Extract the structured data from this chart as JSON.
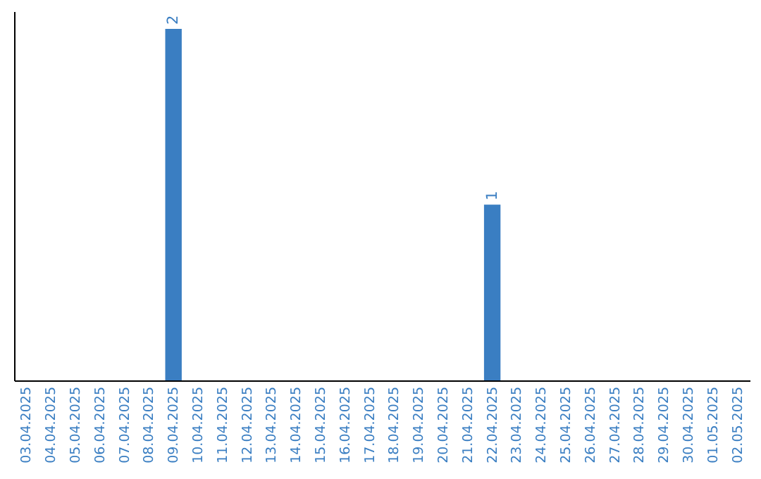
{
  "chart_data": {
    "type": "bar",
    "categories": [
      "03.04.2025",
      "04.04.2025",
      "05.04.2025",
      "06.04.2025",
      "07.04.2025",
      "08.04.2025",
      "09.04.2025",
      "10.04.2025",
      "11.04.2025",
      "12.04.2025",
      "13.04.2025",
      "14.04.2025",
      "15.04.2025",
      "16.04.2025",
      "17.04.2025",
      "18.04.2025",
      "19.04.2025",
      "20.04.2025",
      "21.04.2025",
      "22.04.2025",
      "23.04.2025",
      "24.04.2025",
      "25.04.2025",
      "26.04.2025",
      "27.04.2025",
      "28.04.2025",
      "29.04.2025",
      "30.04.2025",
      "01.05.2025",
      "02.05.2025"
    ],
    "values": [
      0,
      0,
      0,
      0,
      0,
      0,
      2,
      0,
      0,
      0,
      0,
      0,
      0,
      0,
      0,
      0,
      0,
      0,
      0,
      1,
      0,
      0,
      0,
      0,
      0,
      0,
      0,
      0,
      0,
      0
    ],
    "value_labels": [
      null,
      null,
      null,
      null,
      null,
      null,
      "2",
      null,
      null,
      null,
      null,
      null,
      null,
      null,
      null,
      null,
      null,
      null,
      null,
      "1",
      null,
      null,
      null,
      null,
      null,
      null,
      null,
      null,
      null,
      null
    ],
    "color": "#3a7ec2",
    "tick_labels": "x",
    "grid": false
  }
}
